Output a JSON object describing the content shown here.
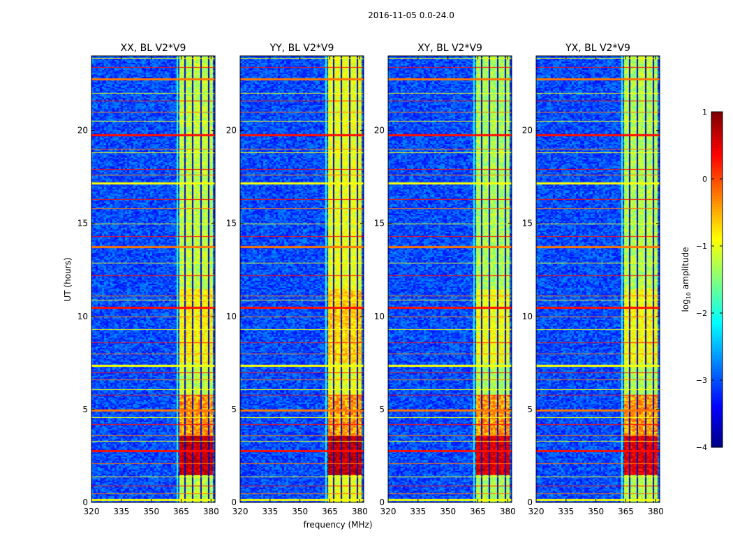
{
  "chart_data": {
    "type": "heatmap",
    "suptitle": "2016-11-05 0.0-24.0",
    "xlabel": "frequency (MHz)",
    "ylabel": "UT (hours)",
    "xlim": [
      320,
      382
    ],
    "ylim": [
      0,
      24
    ],
    "xticks": [
      "320",
      "335",
      "350",
      "365",
      "380"
    ],
    "xtick_values": [
      320,
      335,
      350,
      365,
      380
    ],
    "yticks": [
      "0",
      "5",
      "10",
      "15",
      "20"
    ],
    "ytick_values": [
      0,
      5,
      10,
      15,
      20
    ],
    "panels": [
      {
        "title": "XX, BL V2*V9",
        "peak": 0.95,
        "band_level": -1.2
      },
      {
        "title": "YY, BL V2*V9",
        "peak": 1.0,
        "band_level": -1.0
      },
      {
        "title": "XY, BL V2*V9",
        "peak": 0.85,
        "band_level": -1.3
      },
      {
        "title": "YX, BL V2*V9",
        "peak": 0.8,
        "band_level": -1.25
      }
    ],
    "background_level": -3.0,
    "active_band_mhz": [
      363.5,
      380.5
    ],
    "channel_gaps_mhz": [
      366.5,
      370.5,
      374.5,
      378.5
    ],
    "high_activity_ut": [
      1.5,
      3.6
    ],
    "rfi_lines_ut": [
      0.2,
      0.5,
      0.9,
      1.4,
      2.1,
      2.8,
      3.3,
      3.6,
      4.2,
      4.6,
      5.0,
      5.8,
      6.1,
      6.6,
      7.0,
      7.4,
      8.0,
      8.6,
      9.3,
      10.0,
      10.5,
      10.9,
      11.1,
      12.2,
      12.9,
      13.8,
      14.3,
      15.0,
      15.8,
      16.3,
      17.2,
      17.6,
      17.9,
      18.8,
      19.0,
      19.8,
      20.5,
      21.0,
      21.6,
      22.0,
      22.8,
      23.4,
      23.9
    ],
    "colorbar": {
      "label": "log",
      "label_sub": "10",
      "label_rest": " amplitude",
      "vmin": -4,
      "vmax": 1,
      "tick_values": [
        -4,
        -3,
        -2,
        -1,
        0,
        1
      ],
      "ticks": [
        "−4",
        "−3",
        "−2",
        "−1",
        "0",
        "1"
      ]
    }
  }
}
